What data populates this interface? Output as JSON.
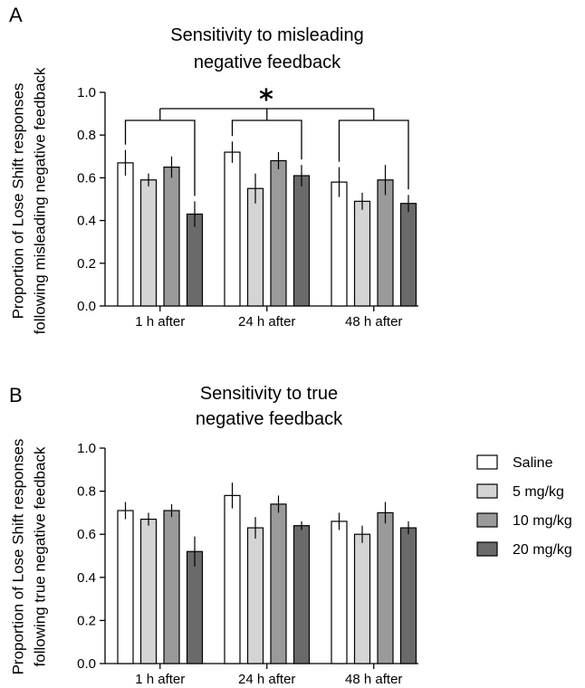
{
  "chart_data": [
    {
      "type": "bar",
      "panel_label": "A",
      "title_lines": [
        "Sensitivity to misleading",
        "negative feedback"
      ],
      "ylabel_lines": [
        "Proportion of Lose Shift responses",
        "following misleading negative feedback"
      ],
      "ylim": [
        0,
        1.0
      ],
      "yticks": [
        "0.0",
        "0.2",
        "0.4",
        "0.6",
        "0.8",
        "1.0"
      ],
      "categories": [
        "1 h after",
        "24 h after",
        "48 h after"
      ],
      "series": [
        {
          "name": "Saline",
          "values": [
            0.67,
            0.72,
            0.58
          ],
          "errors": [
            0.06,
            0.05,
            0.07
          ]
        },
        {
          "name": "5 mg/kg",
          "values": [
            0.59,
            0.55,
            0.49
          ],
          "errors": [
            0.03,
            0.07,
            0.04
          ]
        },
        {
          "name": "10 mg/kg",
          "values": [
            0.65,
            0.68,
            0.59
          ],
          "errors": [
            0.05,
            0.04,
            0.07
          ]
        },
        {
          "name": "20 mg/kg",
          "values": [
            0.43,
            0.61,
            0.48
          ],
          "errors": [
            0.06,
            0.05,
            0.04
          ]
        }
      ],
      "significance": "*"
    },
    {
      "type": "bar",
      "panel_label": "B",
      "title_lines": [
        "Sensitivity to true",
        "negative feedback"
      ],
      "ylabel_lines": [
        "Proportion of Lose Shift responses",
        "following true negative feedback"
      ],
      "ylim": [
        0,
        1.0
      ],
      "yticks": [
        "0.0",
        "0.2",
        "0.4",
        "0.6",
        "0.8",
        "1.0"
      ],
      "categories": [
        "1 h after",
        "24 h after",
        "48 h after"
      ],
      "series": [
        {
          "name": "Saline",
          "values": [
            0.71,
            0.78,
            0.66
          ],
          "errors": [
            0.04,
            0.06,
            0.04
          ]
        },
        {
          "name": "5 mg/kg",
          "values": [
            0.67,
            0.63,
            0.6
          ],
          "errors": [
            0.03,
            0.05,
            0.04
          ]
        },
        {
          "name": "10 mg/kg",
          "values": [
            0.71,
            0.74,
            0.7
          ],
          "errors": [
            0.03,
            0.04,
            0.05
          ]
        },
        {
          "name": "20 mg/kg",
          "values": [
            0.52,
            0.64,
            0.63
          ],
          "errors": [
            0.07,
            0.02,
            0.03
          ]
        }
      ]
    }
  ],
  "legend": {
    "items": [
      "Saline",
      "5 mg/kg",
      "10 mg/kg",
      "20 mg/kg"
    ],
    "colors": [
      "#ffffff",
      "#d4d4d4",
      "#9a9a9a",
      "#6a6a6a"
    ]
  }
}
